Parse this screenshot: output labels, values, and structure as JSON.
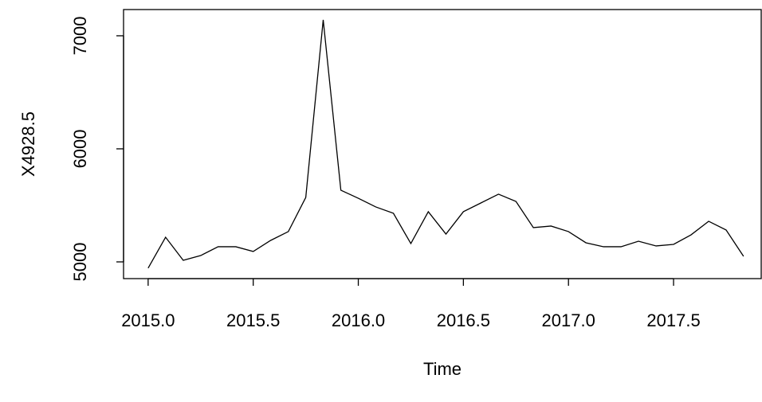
{
  "chart_data": {
    "type": "line",
    "x_label": "Time",
    "y_label": "X4928.5",
    "x": [
      2015.0,
      2015.083,
      2015.167,
      2015.25,
      2015.333,
      2015.417,
      2015.5,
      2015.583,
      2015.667,
      2015.75,
      2015.833,
      2015.917,
      2016.0,
      2016.083,
      2016.167,
      2016.25,
      2016.333,
      2016.417,
      2016.5,
      2016.583,
      2016.667,
      2016.75,
      2016.833,
      2016.917,
      2017.0,
      2017.083,
      2017.167,
      2017.25,
      2017.333,
      2017.417,
      2017.5,
      2017.583,
      2017.667,
      2017.75,
      2017.833
    ],
    "series": [
      {
        "color": "#000000",
        "values": [
          4945,
          5218,
          5014,
          5056,
          5134,
          5134,
          5092,
          5190,
          5268,
          5570,
          7141,
          5634,
          5563,
          5486,
          5430,
          5162,
          5444,
          5246,
          5444,
          5521,
          5599,
          5535,
          5303,
          5317,
          5268,
          5169,
          5134,
          5134,
          5183,
          5141,
          5155,
          5239,
          5359,
          5282,
          5049
        ]
      }
    ],
    "xlim": [
      2014.883,
      2017.917
    ],
    "ylim": [
      4852,
      7232
    ],
    "xticks": [
      {
        "value": 2015.0,
        "label": "2015.0"
      },
      {
        "value": 2015.5,
        "label": "2015.5"
      },
      {
        "value": 2016.0,
        "label": "2016.0"
      },
      {
        "value": 2016.5,
        "label": "2016.5"
      },
      {
        "value": 2017.0,
        "label": "2017.0"
      },
      {
        "value": 2017.5,
        "label": "2017.5"
      }
    ],
    "yticks": [
      5000,
      6000,
      7000
    ]
  }
}
